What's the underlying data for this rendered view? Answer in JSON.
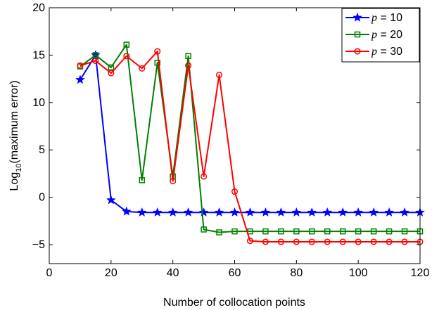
{
  "chart_data": {
    "type": "line",
    "xlabel": "Number of collocation points",
    "ylabel_main": "Log",
    "ylabel_sub": "10",
    "ylabel_rest": "(maximum error)",
    "xlim": [
      0,
      120
    ],
    "ylim": [
      -7,
      20
    ],
    "xticks": [
      0,
      20,
      40,
      60,
      80,
      100,
      120
    ],
    "yticks": [
      -5,
      0,
      5,
      10,
      15,
      20
    ],
    "ytick_labels": [
      "−5",
      "0",
      "5",
      "10",
      "15",
      "20"
    ],
    "grid": false,
    "legend_position": "top-right",
    "x": [
      10,
      15,
      20,
      25,
      30,
      35,
      40,
      45,
      50,
      55,
      60,
      65,
      70,
      75,
      80,
      85,
      90,
      95,
      100,
      105,
      110,
      115,
      120
    ],
    "series": [
      {
        "name": "p = 10",
        "legend_var": "p",
        "legend_rest": " = 10",
        "color": "#0000ff",
        "marker": "star",
        "values": [
          12.4,
          15.0,
          -0.3,
          -1.5,
          -1.6,
          -1.6,
          -1.6,
          -1.6,
          -1.6,
          -1.6,
          -1.6,
          -1.6,
          -1.6,
          -1.6,
          -1.6,
          -1.6,
          -1.6,
          -1.6,
          -1.6,
          -1.6,
          -1.6,
          -1.6,
          -1.6
        ]
      },
      {
        "name": "p = 20",
        "legend_var": "p",
        "legend_rest": " = 20",
        "color": "#008000",
        "marker": "square",
        "values": [
          13.8,
          15.0,
          13.7,
          16.1,
          1.8,
          14.2,
          2.2,
          14.9,
          -3.4,
          -3.7,
          -3.6,
          -3.6,
          -3.6,
          -3.6,
          -3.6,
          -3.6,
          -3.6,
          -3.6,
          -3.6,
          -3.6,
          -3.6,
          -3.6,
          -3.6
        ]
      },
      {
        "name": "p = 30",
        "legend_var": "p",
        "legend_rest": " = 30",
        "color": "#ff0000",
        "marker": "circle",
        "values": [
          13.9,
          14.4,
          13.1,
          14.9,
          13.6,
          15.4,
          1.7,
          13.9,
          2.2,
          12.9,
          0.6,
          -4.6,
          -4.7,
          -4.7,
          -4.7,
          -4.7,
          -4.7,
          -4.7,
          -4.7,
          -4.7,
          -4.7,
          -4.7,
          -4.7
        ]
      }
    ]
  }
}
